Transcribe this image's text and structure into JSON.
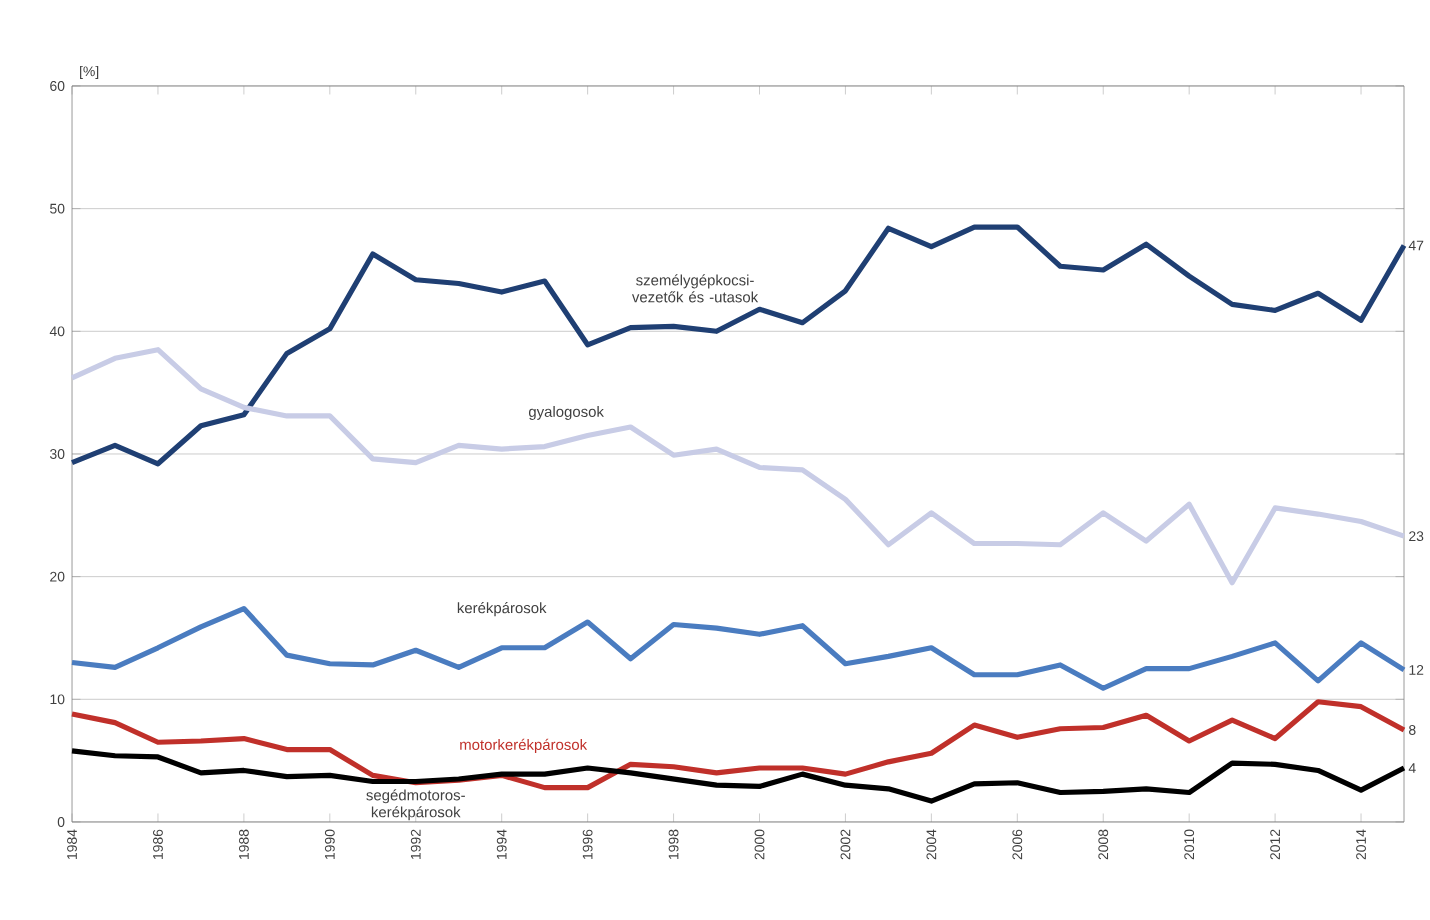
{
  "chart_data": {
    "type": "line",
    "ylabel": "[%]",
    "x": [
      1984,
      1985,
      1986,
      1987,
      1988,
      1989,
      1990,
      1991,
      1992,
      1993,
      1994,
      1995,
      1996,
      1997,
      1998,
      1999,
      2000,
      2001,
      2002,
      2003,
      2004,
      2005,
      2006,
      2007,
      2008,
      2009,
      2010,
      2011,
      2012,
      2013,
      2014,
      2015
    ],
    "xlim": [
      1984,
      2015
    ],
    "xticks": [
      1984,
      1986,
      1988,
      1990,
      1992,
      1994,
      1996,
      1998,
      2000,
      2002,
      2004,
      2006,
      2008,
      2010,
      2012,
      2014
    ],
    "ylim": [
      0,
      60
    ],
    "yticks": [
      0,
      10,
      20,
      30,
      40,
      50,
      60
    ],
    "grid": "y",
    "series": [
      {
        "name": "személygépkocsi-vezetők és -utasok",
        "color": "#1f3f73",
        "values": [
          29.3,
          30.7,
          29.2,
          32.3,
          33.2,
          38.2,
          40.2,
          46.3,
          44.2,
          43.9,
          43.2,
          44.1,
          38.9,
          40.3,
          40.4,
          40.0,
          41.8,
          40.7,
          43.3,
          48.4,
          46.9,
          48.5,
          48.5,
          45.3,
          45.0,
          47.1,
          44.5,
          42.2,
          41.7,
          43.1,
          40.9,
          47.0
        ],
        "value_labels": [
          null,
          null,
          null,
          null,
          null,
          null,
          null,
          null,
          null,
          null,
          null,
          null,
          null,
          null,
          null,
          null,
          null,
          null,
          null,
          null,
          null,
          null,
          null,
          null,
          null,
          null,
          null,
          null,
          null,
          null,
          null,
          "47"
        ]
      },
      {
        "name": "gyalogosok",
        "color": "#c8cce6",
        "values": [
          36.2,
          37.8,
          38.5,
          35.3,
          33.8,
          33.1,
          33.1,
          29.6,
          29.3,
          30.7,
          30.4,
          30.6,
          31.5,
          32.2,
          29.9,
          30.4,
          28.9,
          28.7,
          26.3,
          22.6,
          25.2,
          22.7,
          22.7,
          22.6,
          25.2,
          22.9,
          25.9,
          19.5,
          25.6,
          25.1,
          24.5,
          23.3
        ],
        "value_labels": [
          null,
          null,
          null,
          null,
          null,
          null,
          null,
          null,
          null,
          null,
          null,
          null,
          null,
          null,
          null,
          null,
          null,
          null,
          null,
          null,
          null,
          null,
          null,
          null,
          null,
          null,
          null,
          null,
          null,
          null,
          null,
          "23"
        ]
      },
      {
        "name": "kerékpárosok",
        "color": "#4a7cc0",
        "values": [
          13.0,
          12.6,
          14.2,
          15.9,
          17.4,
          13.6,
          12.9,
          12.8,
          14.0,
          12.6,
          14.2,
          14.2,
          16.3,
          13.3,
          16.1,
          15.8,
          15.3,
          16.0,
          12.9,
          13.5,
          14.2,
          12.0,
          12.0,
          12.8,
          10.9,
          12.5,
          12.5,
          13.5,
          14.6,
          11.5,
          14.6,
          12.4
        ],
        "value_labels": [
          null,
          null,
          null,
          null,
          null,
          null,
          null,
          null,
          null,
          null,
          null,
          null,
          null,
          null,
          null,
          null,
          null,
          null,
          null,
          null,
          null,
          null,
          null,
          null,
          null,
          null,
          null,
          null,
          null,
          null,
          null,
          "12"
        ]
      },
      {
        "name": "motorkerékpárosok",
        "color": "#c0302a",
        "values": [
          8.8,
          8.1,
          6.5,
          6.6,
          6.8,
          5.9,
          5.9,
          3.8,
          3.2,
          3.4,
          3.8,
          2.8,
          2.8,
          4.7,
          4.5,
          4.0,
          4.4,
          4.4,
          3.9,
          4.9,
          5.6,
          7.9,
          6.9,
          7.6,
          7.7,
          8.7,
          6.6,
          8.3,
          6.8,
          9.8,
          9.4,
          7.5
        ],
        "value_labels": [
          null,
          null,
          null,
          null,
          null,
          null,
          null,
          null,
          null,
          null,
          null,
          null,
          null,
          null,
          null,
          null,
          null,
          null,
          null,
          null,
          null,
          null,
          null,
          null,
          null,
          null,
          null,
          null,
          null,
          null,
          null,
          "8"
        ]
      },
      {
        "name": "segédmotoros-kerékpárosok",
        "color": "#000000",
        "values": [
          5.8,
          5.4,
          5.3,
          4.0,
          4.2,
          3.7,
          3.8,
          3.3,
          3.3,
          3.5,
          3.9,
          3.9,
          4.4,
          4.0,
          3.5,
          3.0,
          2.9,
          3.9,
          3.0,
          2.7,
          1.7,
          3.1,
          3.2,
          2.4,
          2.5,
          2.7,
          2.4,
          4.8,
          4.7,
          4.2,
          2.6,
          4.4
        ],
        "value_labels": [
          null,
          null,
          null,
          null,
          null,
          null,
          null,
          null,
          null,
          null,
          null,
          null,
          null,
          null,
          null,
          null,
          null,
          null,
          null,
          null,
          null,
          null,
          null,
          null,
          null,
          null,
          null,
          null,
          null,
          null,
          null,
          "4"
        ]
      }
    ]
  }
}
